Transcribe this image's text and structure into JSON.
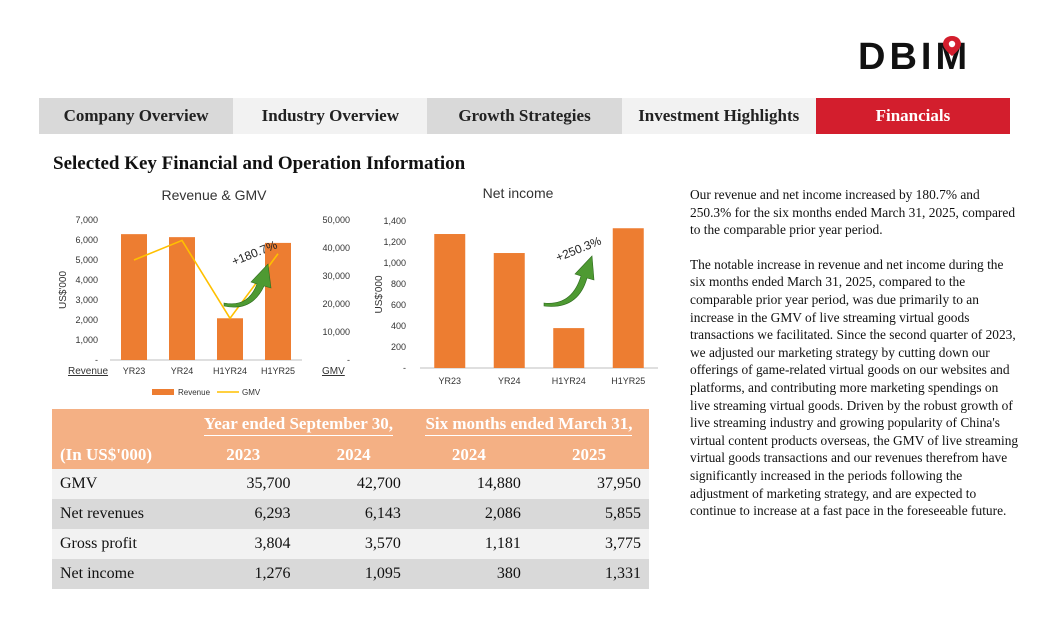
{
  "logo": {
    "text": "DBIM"
  },
  "nav": {
    "tabs": [
      {
        "label": "Company Overview"
      },
      {
        "label": "Industry Overview"
      },
      {
        "label": "Growth Strategies"
      },
      {
        "label": "Investment Highlights"
      },
      {
        "label": "Financials"
      }
    ]
  },
  "section_title": "Selected Key Financial and Operation Information",
  "chart_data": [
    {
      "type": "bar",
      "title": "Revenue & GMV",
      "categories": [
        "YR23",
        "YR24",
        "H1YR24",
        "H1YR25"
      ],
      "series": [
        {
          "name": "Revenue",
          "type": "bar",
          "axis": "left",
          "values": [
            6293,
            6143,
            2086,
            5855
          ],
          "color": "#ed7d31"
        },
        {
          "name": "GMV",
          "type": "line",
          "axis": "right",
          "values": [
            35700,
            42700,
            14880,
            37950
          ],
          "color": "#ffc000"
        }
      ],
      "ylabel": "US$'000",
      "left_axis": {
        "ylim": [
          0,
          7000
        ],
        "ticks": [
          "-",
          "1,000",
          "2,000",
          "3,000",
          "4,000",
          "5,000",
          "6,000",
          "7,000"
        ],
        "footer_label": "Revenue"
      },
      "right_axis": {
        "ylim": [
          0,
          50000
        ],
        "ticks": [
          "-",
          "10,000",
          "20,000",
          "30,000",
          "40,000",
          "50,000"
        ],
        "footer_label": "GMV"
      },
      "annotation": "+180.7%",
      "legend": [
        "Revenue",
        "GMV"
      ],
      "legend_position": "bottom",
      "grid": false
    },
    {
      "type": "bar",
      "title": "Net income",
      "categories": [
        "YR23",
        "YR24",
        "H1YR24",
        "H1YR25"
      ],
      "series": [
        {
          "name": "Net income",
          "values": [
            1276,
            1095,
            380,
            1331
          ],
          "color": "#ed7d31"
        }
      ],
      "ylabel": "US$'000",
      "ylim": [
        0,
        1400
      ],
      "ticks": [
        "-",
        "200",
        "400",
        "600",
        "800",
        "1,000",
        "1,200",
        "1,400"
      ],
      "annotation": "+250.3%",
      "grid": false
    }
  ],
  "table": {
    "header_top": [
      "Year ended September 30,",
      "Six months ended March 31,"
    ],
    "header_unit": "(In US$'000)",
    "years": [
      "2023",
      "2024",
      "2024",
      "2025"
    ],
    "rows": [
      {
        "label": "GMV",
        "values": [
          "35,700",
          "42,700",
          "14,880",
          "37,950"
        ]
      },
      {
        "label": "Net revenues",
        "values": [
          "6,293",
          "6,143",
          "2,086",
          "5,855"
        ]
      },
      {
        "label": "Gross profit",
        "values": [
          "3,804",
          "3,570",
          "1,181",
          "3,775"
        ]
      },
      {
        "label": "Net income",
        "values": [
          "1,276",
          "1,095",
          "380",
          "1,331"
        ]
      }
    ]
  },
  "text": {
    "p1": "Our revenue and net income increased by 180.7% and 250.3% for the six months ended March 31, 2025, compared to the comparable prior year period.",
    "p2": "The notable increase in revenue and net income during the six months ended March 31, 2025, compared to the comparable prior year period, was due primarily to an increase in the GMV of live streaming virtual goods transactions we facilitated. Since the second quarter of 2023, we adjusted our marketing strategy by cutting down our offerings of game-related virtual goods on our websites and platforms, and contributing more marketing spendings on live streaming virtual goods. Driven by the robust growth of live streaming industry and growing popularity of China's virtual content products overseas, the GMV of live streaming virtual goods transactions and our revenues therefrom have significantly increased in the periods following the adjustment of marketing strategy, and are expected to continue to increase at a fast pace in the foreseeable future."
  }
}
